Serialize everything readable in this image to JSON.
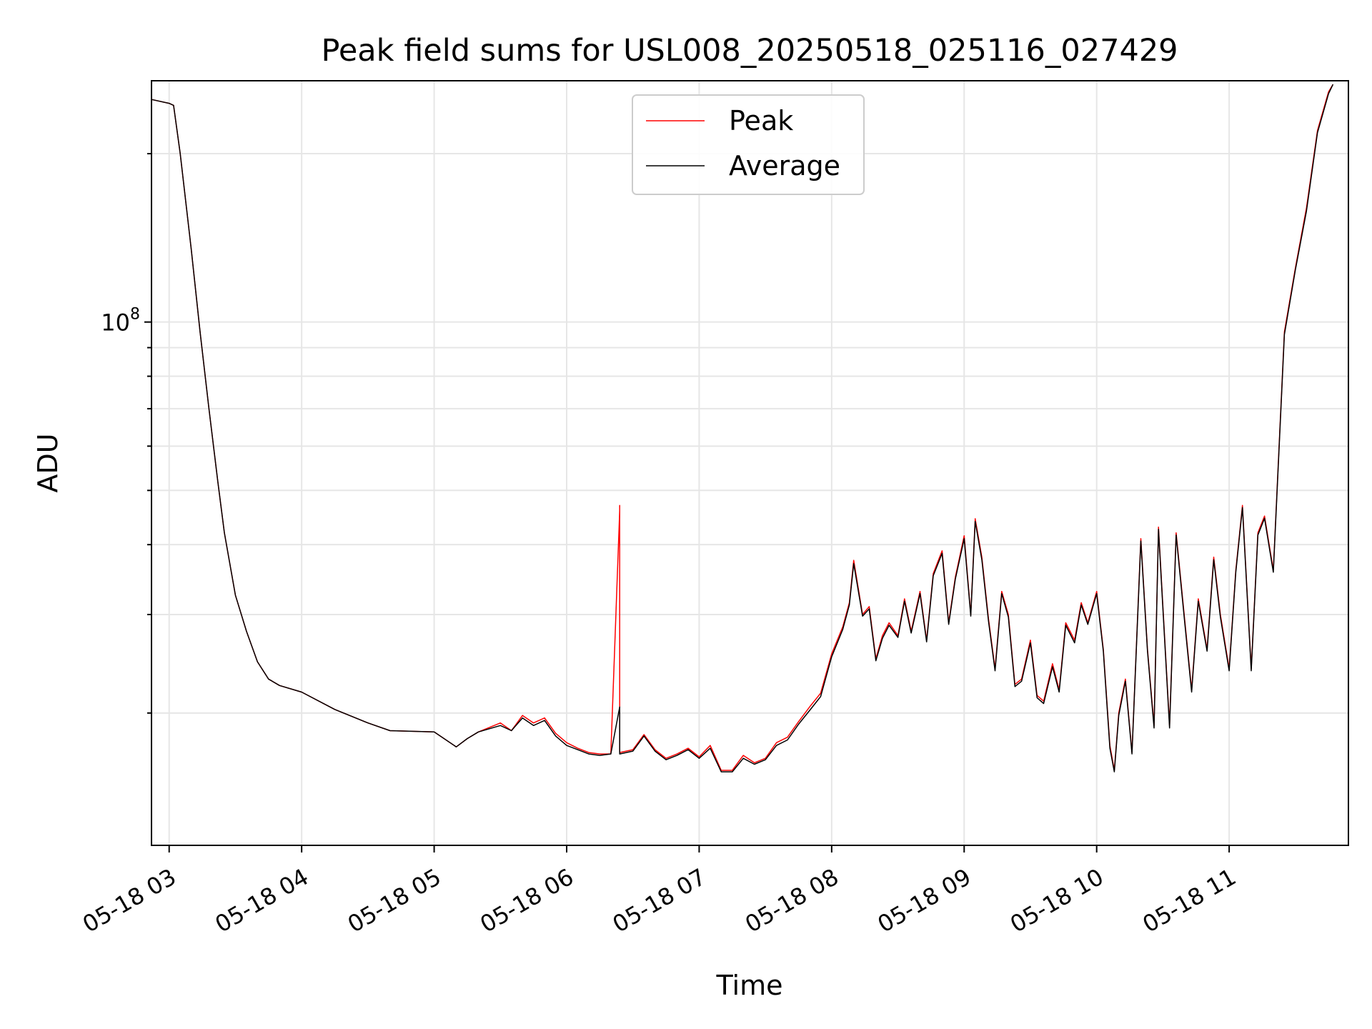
{
  "chart_data": {
    "type": "line",
    "title": "Peak field sums for USL008_20250518_025116_027429",
    "xlabel": "Time",
    "ylabel": "ADU",
    "y_scale": "log",
    "ylim": [
      11600000,
      270000000
    ],
    "xlim": [
      "05-18 02:52",
      "05-18 11:54"
    ],
    "grid": true,
    "legend_position": "upper center",
    "x_ticks": [
      "05-18 03",
      "05-18 04",
      "05-18 05",
      "05-18 06",
      "05-18 07",
      "05-18 08",
      "05-18 09",
      "05-18 10",
      "05-18 11"
    ],
    "y_tick_base": "10",
    "y_tick_exp": "8",
    "series": [
      {
        "name": "Peak",
        "color": "#ff0000",
        "x": [
          "05-18 02:52",
          "05-18 03:00",
          "05-18 03:02",
          "05-18 03:05",
          "05-18 03:10",
          "05-18 03:14",
          "05-18 03:18",
          "05-18 03:22",
          "05-18 03:25",
          "05-18 03:30",
          "05-18 03:35",
          "05-18 03:40",
          "05-18 03:45",
          "05-18 03:50",
          "05-18 04:00",
          "05-18 04:15",
          "05-18 04:30",
          "05-18 04:40",
          "05-18 05:00",
          "05-18 05:10",
          "05-18 05:15",
          "05-18 05:20",
          "05-18 05:30",
          "05-18 05:35",
          "05-18 05:40",
          "05-18 05:45",
          "05-18 05:50",
          "05-18 05:55",
          "05-18 06:00",
          "05-18 06:05",
          "05-18 06:10",
          "05-18 06:15",
          "05-18 06:20",
          "05-18 06:24",
          "05-18 06:24",
          "05-18 06:24",
          "05-18 06:30",
          "05-18 06:35",
          "05-18 06:40",
          "05-18 06:45",
          "05-18 06:50",
          "05-18 06:55",
          "05-18 07:00",
          "05-18 07:05",
          "05-18 07:10",
          "05-18 07:15",
          "05-18 07:20",
          "05-18 07:25",
          "05-18 07:30",
          "05-18 07:35",
          "05-18 07:40",
          "05-18 07:45",
          "05-18 07:50",
          "05-18 07:55",
          "05-18 08:00",
          "05-18 08:05",
          "05-18 08:08",
          "05-18 08:10",
          "05-18 08:14",
          "05-18 08:17",
          "05-18 08:20",
          "05-18 08:23",
          "05-18 08:26",
          "05-18 08:30",
          "05-18 08:33",
          "05-18 08:36",
          "05-18 08:40",
          "05-18 08:43",
          "05-18 08:46",
          "05-18 08:50",
          "05-18 08:53",
          "05-18 08:56",
          "05-18 09:00",
          "05-18 09:03",
          "05-18 09:05",
          "05-18 09:08",
          "05-18 09:11",
          "05-18 09:14",
          "05-18 09:17",
          "05-18 09:20",
          "05-18 09:23",
          "05-18 09:26",
          "05-18 09:30",
          "05-18 09:33",
          "05-18 09:36",
          "05-18 09:40",
          "05-18 09:43",
          "05-18 09:46",
          "05-18 09:50",
          "05-18 09:53",
          "05-18 09:56",
          "05-18 10:00",
          "05-18 10:03",
          "05-18 10:06",
          "05-18 10:08",
          "05-18 10:10",
          "05-18 10:13",
          "05-18 10:16",
          "05-18 10:20",
          "05-18 10:23",
          "05-18 10:26",
          "05-18 10:28",
          "05-18 10:30",
          "05-18 10:33",
          "05-18 10:36",
          "05-18 10:40",
          "05-18 10:43",
          "05-18 10:46",
          "05-18 10:50",
          "05-18 10:53",
          "05-18 10:56",
          "05-18 11:00",
          "05-18 11:03",
          "05-18 11:06",
          "05-18 11:10",
          "05-18 11:13",
          "05-18 11:16",
          "05-18 11:20",
          "05-18 11:25",
          "05-18 11:30",
          "05-18 11:35",
          "05-18 11:40",
          "05-18 11:45",
          "05-18 11:47"
        ],
        "y": [
          250000000,
          246000000,
          244000000,
          200000000,
          135000000,
          96000000,
          70000000,
          52000000,
          42000000,
          32500000,
          28000000,
          24700000,
          23000000,
          22400000,
          21800000,
          20300000,
          19200000,
          18600000,
          18500000,
          17400000,
          18000000,
          18500000,
          19200000,
          18600000,
          19800000,
          19200000,
          19600000,
          18400000,
          17700000,
          17300000,
          17000000,
          16900000,
          16900000,
          46000000,
          47000000,
          17000000,
          17200000,
          18300000,
          17200000,
          16600000,
          16900000,
          17300000,
          16700000,
          17500000,
          15800000,
          15800000,
          16800000,
          16300000,
          16600000,
          17700000,
          18100000,
          19300000,
          20500000,
          21700000,
          25500000,
          28500000,
          31500000,
          37500000,
          30000000,
          31000000,
          25000000,
          27500000,
          29000000,
          27500000,
          32000000,
          28000000,
          33000000,
          27000000,
          35500000,
          39000000,
          29000000,
          35000000,
          41500000,
          30000000,
          44500000,
          38000000,
          29500000,
          24000000,
          33000000,
          30000000,
          22500000,
          23000000,
          27000000,
          21500000,
          21000000,
          24500000,
          22000000,
          29000000,
          27000000,
          31500000,
          29000000,
          33000000,
          26000000,
          17500000,
          15800000,
          20000000,
          23000000,
          17000000,
          41000000,
          26000000,
          19000000,
          43000000,
          31000000,
          19000000,
          42000000,
          29000000,
          22000000,
          32000000,
          26000000,
          38000000,
          30000000,
          24000000,
          36000000,
          47000000,
          24000000,
          42000000,
          45000000,
          36000000,
          96000000,
          125000000,
          160000000,
          220000000,
          258000000,
          266000000
        ]
      },
      {
        "name": "Average",
        "color": "#000000",
        "x": [
          "05-18 02:52",
          "05-18 03:00",
          "05-18 03:02",
          "05-18 03:05",
          "05-18 03:10",
          "05-18 03:14",
          "05-18 03:18",
          "05-18 03:22",
          "05-18 03:25",
          "05-18 03:30",
          "05-18 03:35",
          "05-18 03:40",
          "05-18 03:45",
          "05-18 03:50",
          "05-18 04:00",
          "05-18 04:15",
          "05-18 04:30",
          "05-18 04:40",
          "05-18 05:00",
          "05-18 05:10",
          "05-18 05:15",
          "05-18 05:20",
          "05-18 05:30",
          "05-18 05:35",
          "05-18 05:40",
          "05-18 05:45",
          "05-18 05:50",
          "05-18 05:55",
          "05-18 06:00",
          "05-18 06:05",
          "05-18 06:10",
          "05-18 06:15",
          "05-18 06:20",
          "05-18 06:24",
          "05-18 06:24",
          "05-18 06:24",
          "05-18 06:30",
          "05-18 06:35",
          "05-18 06:40",
          "05-18 06:45",
          "05-18 06:50",
          "05-18 06:55",
          "05-18 07:00",
          "05-18 07:05",
          "05-18 07:10",
          "05-18 07:15",
          "05-18 07:20",
          "05-18 07:25",
          "05-18 07:30",
          "05-18 07:35",
          "05-18 07:40",
          "05-18 07:45",
          "05-18 07:50",
          "05-18 07:55",
          "05-18 08:00",
          "05-18 08:05",
          "05-18 08:08",
          "05-18 08:10",
          "05-18 08:14",
          "05-18 08:17",
          "05-18 08:20",
          "05-18 08:23",
          "05-18 08:26",
          "05-18 08:30",
          "05-18 08:33",
          "05-18 08:36",
          "05-18 08:40",
          "05-18 08:43",
          "05-18 08:46",
          "05-18 08:50",
          "05-18 08:53",
          "05-18 08:56",
          "05-18 09:00",
          "05-18 09:03",
          "05-18 09:05",
          "05-18 09:08",
          "05-18 09:11",
          "05-18 09:14",
          "05-18 09:17",
          "05-18 09:20",
          "05-18 09:23",
          "05-18 09:26",
          "05-18 09:30",
          "05-18 09:33",
          "05-18 09:36",
          "05-18 09:40",
          "05-18 09:43",
          "05-18 09:46",
          "05-18 09:50",
          "05-18 09:53",
          "05-18 09:56",
          "05-18 10:00",
          "05-18 10:03",
          "05-18 10:06",
          "05-18 10:08",
          "05-18 10:10",
          "05-18 10:13",
          "05-18 10:16",
          "05-18 10:20",
          "05-18 10:23",
          "05-18 10:26",
          "05-18 10:28",
          "05-18 10:30",
          "05-18 10:33",
          "05-18 10:36",
          "05-18 10:40",
          "05-18 10:43",
          "05-18 10:46",
          "05-18 10:50",
          "05-18 10:53",
          "05-18 10:56",
          "05-18 11:00",
          "05-18 11:03",
          "05-18 11:06",
          "05-18 11:10",
          "05-18 11:13",
          "05-18 11:16",
          "05-18 11:20",
          "05-18 11:25",
          "05-18 11:30",
          "05-18 11:35",
          "05-18 11:40",
          "05-18 11:45",
          "05-18 11:47"
        ],
        "y": [
          250000000,
          246000000,
          244000000,
          200000000,
          135000000,
          96000000,
          70000000,
          52000000,
          42000000,
          32500000,
          28000000,
          24700000,
          23000000,
          22400000,
          21800000,
          20300000,
          19200000,
          18600000,
          18500000,
          17400000,
          18000000,
          18500000,
          19000000,
          18600000,
          19600000,
          19000000,
          19400000,
          18200000,
          17500000,
          17200000,
          16900000,
          16800000,
          16900000,
          20500000,
          20500000,
          16900000,
          17100000,
          18200000,
          17100000,
          16500000,
          16800000,
          17200000,
          16600000,
          17300000,
          15700000,
          15700000,
          16600000,
          16200000,
          16500000,
          17500000,
          17900000,
          19100000,
          20200000,
          21400000,
          25200000,
          28200000,
          31200000,
          37000000,
          29800000,
          30700000,
          24800000,
          27200000,
          28700000,
          27300000,
          31700000,
          27800000,
          32700000,
          26800000,
          35200000,
          38600000,
          28800000,
          34700000,
          41000000,
          29800000,
          44000000,
          37600000,
          29200000,
          23800000,
          32700000,
          29700000,
          22300000,
          22800000,
          26700000,
          21300000,
          20800000,
          24200000,
          21800000,
          28700000,
          26700000,
          31200000,
          28800000,
          32700000,
          25800000,
          17300000,
          15700000,
          19800000,
          22800000,
          16900000,
          40600000,
          25800000,
          18800000,
          42600000,
          30700000,
          18800000,
          41600000,
          28700000,
          21800000,
          31700000,
          25800000,
          37600000,
          29700000,
          23800000,
          35700000,
          46600000,
          23800000,
          41600000,
          44600000,
          35700000,
          95000000,
          124000000,
          158000000,
          218000000,
          256000000,
          266000000
        ]
      }
    ]
  }
}
